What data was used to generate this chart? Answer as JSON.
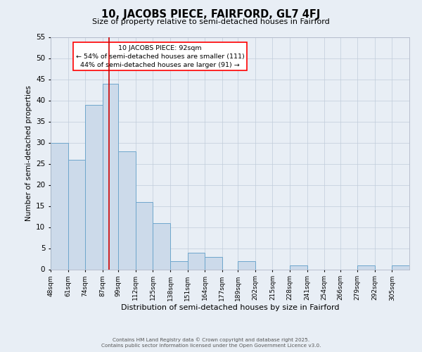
{
  "title": "10, JACOBS PIECE, FAIRFORD, GL7 4FJ",
  "subtitle": "Size of property relative to semi-detached houses in Fairford",
  "xlabel": "Distribution of semi-detached houses by size in Fairford",
  "ylabel": "Number of semi-detached properties",
  "bin_labels": [
    "48sqm",
    "61sqm",
    "74sqm",
    "87sqm",
    "99sqm",
    "112sqm",
    "125sqm",
    "138sqm",
    "151sqm",
    "164sqm",
    "177sqm",
    "189sqm",
    "202sqm",
    "215sqm",
    "228sqm",
    "241sqm",
    "254sqm",
    "266sqm",
    "279sqm",
    "292sqm",
    "305sqm"
  ],
  "bar_values": [
    30,
    26,
    39,
    44,
    28,
    16,
    11,
    2,
    4,
    3,
    0,
    2,
    0,
    0,
    1,
    0,
    0,
    0,
    1,
    0,
    1
  ],
  "bar_color": "#ccdaea",
  "bar_edge_color": "#6ea6cc",
  "vline_x": 92,
  "bin_edges": [
    48,
    61,
    74,
    87,
    99,
    112,
    125,
    138,
    151,
    164,
    177,
    189,
    202,
    215,
    228,
    241,
    254,
    266,
    279,
    292,
    305,
    318
  ],
  "ylim": [
    0,
    55
  ],
  "yticks": [
    0,
    5,
    10,
    15,
    20,
    25,
    30,
    35,
    40,
    45,
    50,
    55
  ],
  "annotation_title": "10 JACOBS PIECE: 92sqm",
  "annotation_line1": "← 54% of semi-detached houses are smaller (111)",
  "annotation_line2": "44% of semi-detached houses are larger (91) →",
  "bg_color": "#e8eef5",
  "footer1": "Contains HM Land Registry data © Crown copyright and database right 2025.",
  "footer2": "Contains public sector information licensed under the Open Government Licence v3.0."
}
